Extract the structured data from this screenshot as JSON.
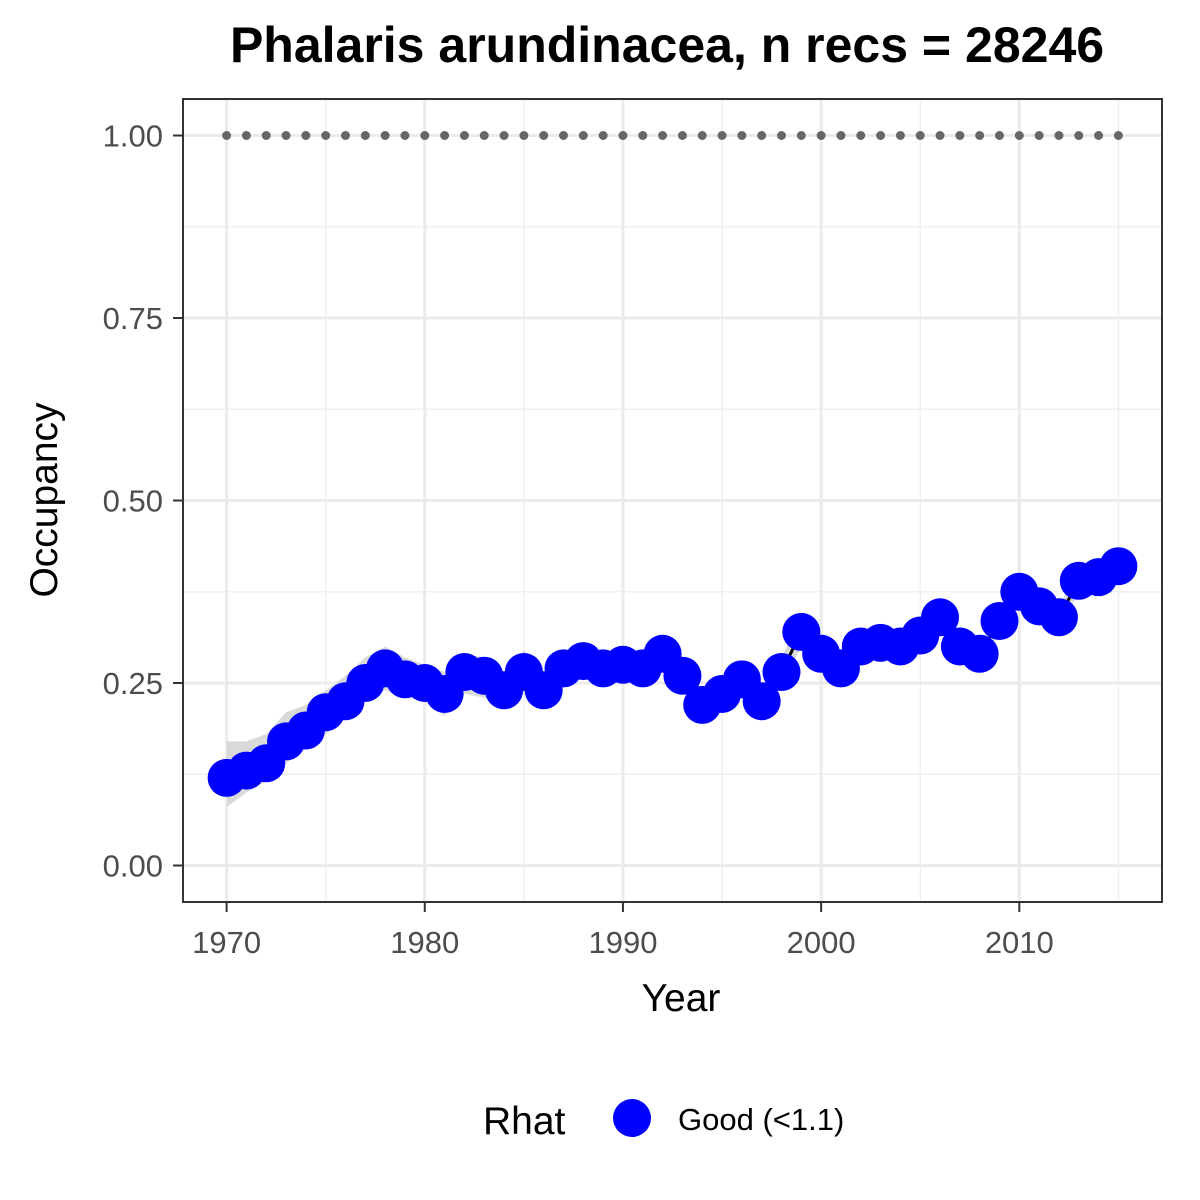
{
  "chart_data": {
    "type": "line",
    "title": "Phalaris arundinacea, n recs = 28246",
    "xlabel": "Year",
    "ylabel": "Occupancy",
    "xlim": [
      1967.8,
      2017.2
    ],
    "ylim": [
      -0.05,
      1.05
    ],
    "x_ticks": [
      1970,
      1980,
      1990,
      2000,
      2010
    ],
    "x_tick_labels": [
      "1970",
      "1980",
      "1990",
      "2000",
      "2010"
    ],
    "x_minor_ticks": [
      1975,
      1985,
      1995,
      2005,
      2015
    ],
    "y_ticks": [
      0,
      0.25,
      0.5,
      0.75,
      1.0
    ],
    "y_tick_labels": [
      "0.00",
      "0.25",
      "0.50",
      "0.75",
      "1.00"
    ],
    "y_minor_ticks": [
      0.125,
      0.375,
      0.625,
      0.875
    ],
    "grid": true,
    "legend": {
      "title": "Rhat",
      "position": "bottom",
      "entries": [
        {
          "label": "Good (<1.1)",
          "color": "#0000ff"
        }
      ]
    },
    "colors": {
      "points": "#0000ff",
      "line": "#000000",
      "ribbon": "#d9d9d9",
      "reference_line": "#666666"
    },
    "reference_line": {
      "y": 1.0,
      "style": "dotted",
      "x_range": [
        1970,
        2015
      ]
    },
    "series": [
      {
        "x": [
          1970,
          1971,
          1972,
          1973,
          1974,
          1975,
          1976,
          1977,
          1978,
          1979,
          1980,
          1981,
          1982,
          1983,
          1984,
          1985,
          1986,
          1987,
          1988,
          1989,
          1990,
          1991,
          1992,
          1993,
          1994,
          1995,
          1996,
          1997,
          1998,
          1999,
          2000,
          2001,
          2002,
          2003,
          2004,
          2005,
          2006,
          2007,
          2008,
          2009,
          2010,
          2011,
          2012,
          2013,
          2014,
          2015
        ],
        "y": [
          0.12,
          0.13,
          0.14,
          0.17,
          0.185,
          0.21,
          0.225,
          0.25,
          0.27,
          0.255,
          0.25,
          0.235,
          0.265,
          0.26,
          0.24,
          0.265,
          0.24,
          0.27,
          0.28,
          0.27,
          0.275,
          0.27,
          0.29,
          0.26,
          0.22,
          0.235,
          0.255,
          0.225,
          0.265,
          0.32,
          0.29,
          0.27,
          0.3,
          0.305,
          0.3,
          0.315,
          0.34,
          0.3,
          0.29,
          0.335,
          0.375,
          0.355,
          0.34,
          0.39,
          0.395,
          0.41
        ],
        "ci_lower": [
          0.08,
          0.1,
          0.115,
          0.14,
          0.16,
          0.18,
          0.2,
          0.225,
          0.24,
          0.23,
          0.225,
          0.205,
          0.235,
          0.23,
          0.22,
          0.235,
          0.22,
          0.245,
          0.26,
          0.25,
          0.255,
          0.25,
          0.265,
          0.24,
          0.205,
          0.215,
          0.235,
          0.205,
          0.245,
          0.3,
          0.27,
          0.255,
          0.285,
          0.29,
          0.285,
          0.3,
          0.325,
          0.285,
          0.275,
          0.32,
          0.36,
          0.34,
          0.325,
          0.375,
          0.38,
          0.395
        ],
        "ci_upper": [
          0.17,
          0.17,
          0.18,
          0.21,
          0.22,
          0.24,
          0.26,
          0.285,
          0.3,
          0.285,
          0.275,
          0.265,
          0.29,
          0.285,
          0.26,
          0.295,
          0.26,
          0.295,
          0.3,
          0.29,
          0.295,
          0.29,
          0.31,
          0.28,
          0.24,
          0.255,
          0.275,
          0.245,
          0.285,
          0.34,
          0.31,
          0.29,
          0.315,
          0.32,
          0.315,
          0.33,
          0.355,
          0.315,
          0.305,
          0.35,
          0.39,
          0.37,
          0.355,
          0.405,
          0.41,
          0.425
        ]
      }
    ]
  }
}
